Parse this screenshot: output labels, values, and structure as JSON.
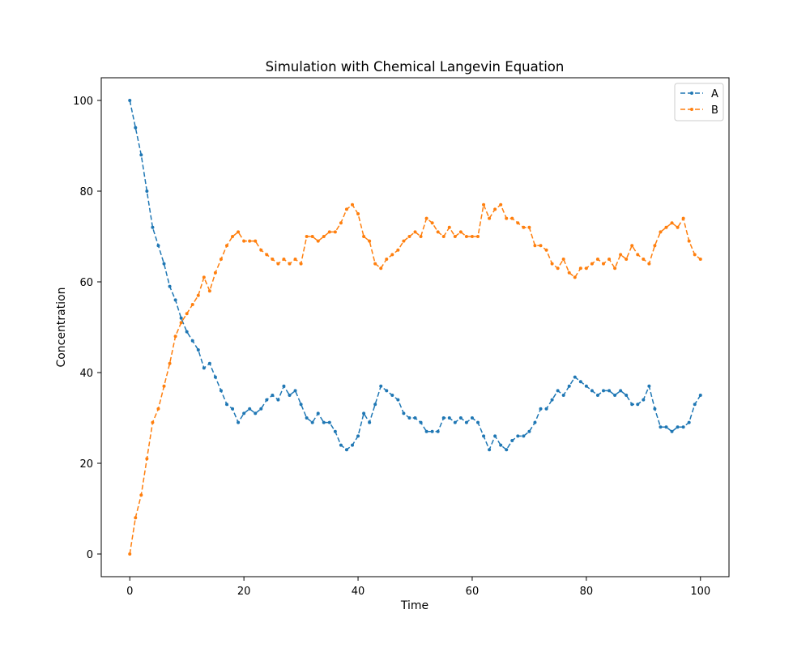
{
  "chart_data": {
    "type": "line",
    "title": "Simulation with Chemical Langevin Equation",
    "xlabel": "Time",
    "ylabel": "Concentration",
    "xlim": [
      -5,
      105
    ],
    "ylim": [
      -5,
      105
    ],
    "xticks": [
      0,
      20,
      40,
      60,
      80,
      100
    ],
    "yticks": [
      0,
      20,
      40,
      60,
      80,
      100
    ],
    "grid": false,
    "legend_position": "top-right",
    "line_style": "dashed",
    "marker": "dot",
    "series": [
      {
        "name": "A",
        "color": "#1f77b4",
        "x": [
          0,
          1,
          2,
          3,
          4,
          5,
          6,
          7,
          8,
          9,
          10,
          11,
          12,
          13,
          14,
          15,
          16,
          17,
          18,
          19,
          20,
          21,
          22,
          23,
          24,
          25,
          26,
          27,
          28,
          29,
          30,
          31,
          32,
          33,
          34,
          35,
          36,
          37,
          38,
          39,
          40,
          41,
          42,
          43,
          44,
          45,
          46,
          47,
          48,
          49,
          50,
          51,
          52,
          53,
          54,
          55,
          56,
          57,
          58,
          59,
          60,
          61,
          62,
          63,
          64,
          65,
          66,
          67,
          68,
          69,
          70,
          71,
          72,
          73,
          74,
          75,
          76,
          77,
          78,
          79,
          80,
          81,
          82,
          83,
          84,
          85,
          86,
          87,
          88,
          89,
          90,
          91,
          92,
          93,
          94,
          95,
          96,
          97,
          98,
          99,
          100
        ],
        "values": [
          100,
          94,
          88,
          80,
          72,
          68,
          64,
          59,
          56,
          52,
          49,
          47,
          45,
          41,
          42,
          39,
          36,
          33,
          32,
          29,
          31,
          32,
          31,
          32,
          34,
          35,
          34,
          37,
          35,
          36,
          33,
          30,
          29,
          31,
          29,
          29,
          27,
          24,
          23,
          24,
          26,
          31,
          29,
          33,
          37,
          36,
          35,
          34,
          31,
          30,
          30,
          29,
          27,
          27,
          27,
          30,
          30,
          29,
          30,
          29,
          30,
          29,
          26,
          23,
          26,
          24,
          23,
          25,
          26,
          26,
          27,
          29,
          32,
          32,
          34,
          36,
          35,
          37,
          39,
          38,
          37,
          36,
          35,
          36,
          36,
          35,
          36,
          35,
          33,
          33,
          34,
          37,
          32,
          28,
          28,
          27,
          28,
          28,
          29,
          33,
          35
        ]
      },
      {
        "name": "B",
        "color": "#ff7f0e",
        "x": [
          0,
          1,
          2,
          3,
          4,
          5,
          6,
          7,
          8,
          9,
          10,
          11,
          12,
          13,
          14,
          15,
          16,
          17,
          18,
          19,
          20,
          21,
          22,
          23,
          24,
          25,
          26,
          27,
          28,
          29,
          30,
          31,
          32,
          33,
          34,
          35,
          36,
          37,
          38,
          39,
          40,
          41,
          42,
          43,
          44,
          45,
          46,
          47,
          48,
          49,
          50,
          51,
          52,
          53,
          54,
          55,
          56,
          57,
          58,
          59,
          60,
          61,
          62,
          63,
          64,
          65,
          66,
          67,
          68,
          69,
          70,
          71,
          72,
          73,
          74,
          75,
          76,
          77,
          78,
          79,
          80,
          81,
          82,
          83,
          84,
          85,
          86,
          87,
          88,
          89,
          90,
          91,
          92,
          93,
          94,
          95,
          96,
          97,
          98,
          99,
          100
        ],
        "values": [
          0,
          8,
          13,
          21,
          29,
          32,
          37,
          42,
          48,
          51,
          53,
          55,
          57,
          61,
          58,
          62,
          65,
          68,
          70,
          71,
          69,
          69,
          69,
          67,
          66,
          65,
          64,
          65,
          64,
          65,
          64,
          70,
          70,
          69,
          70,
          71,
          71,
          73,
          76,
          77,
          75,
          70,
          69,
          64,
          63,
          65,
          66,
          67,
          69,
          70,
          71,
          70,
          74,
          73,
          71,
          70,
          72,
          70,
          71,
          70,
          70,
          70,
          77,
          74,
          76,
          77,
          74,
          74,
          73,
          72,
          72,
          68,
          68,
          67,
          64,
          63,
          65,
          62,
          61,
          63,
          63,
          64,
          65,
          64,
          65,
          63,
          66,
          65,
          68,
          66,
          65,
          64,
          68,
          71,
          72,
          73,
          72,
          74,
          69,
          66,
          65
        ]
      }
    ]
  }
}
